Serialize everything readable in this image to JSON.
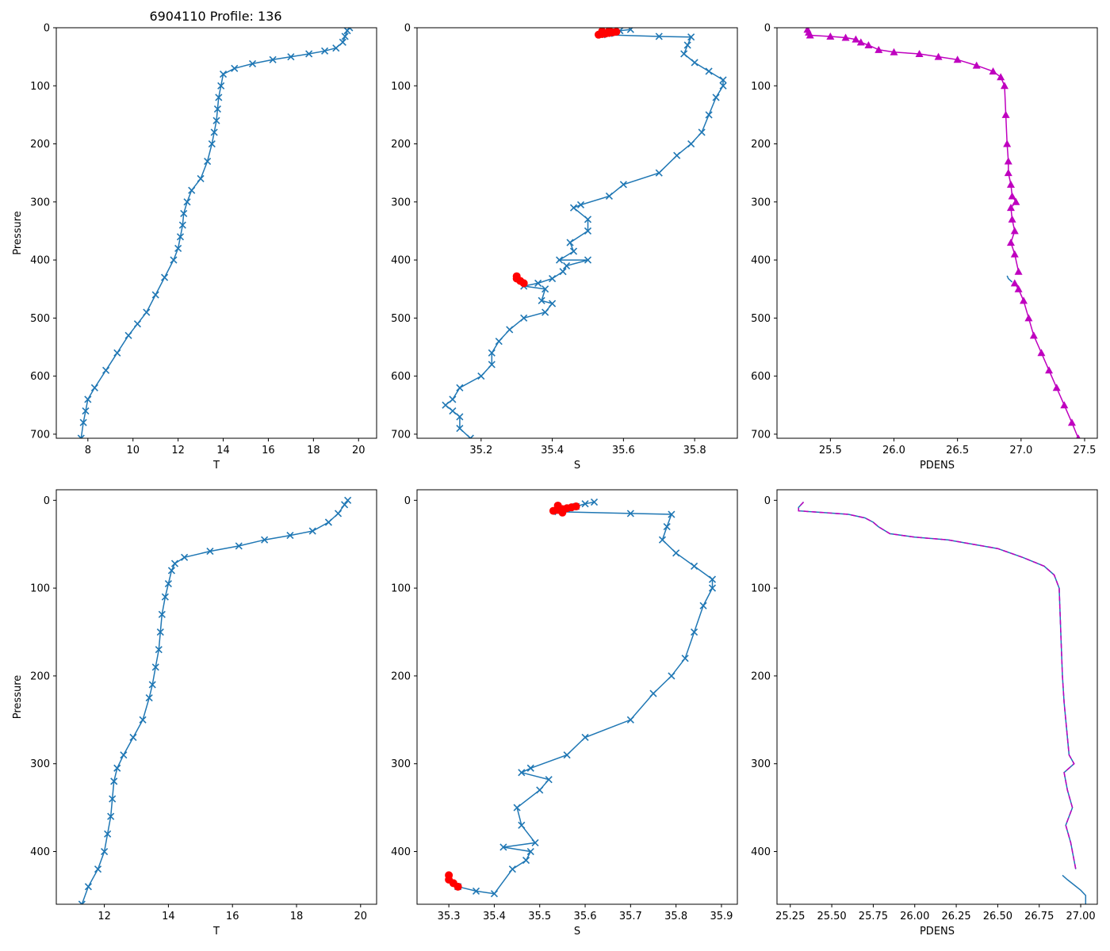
{
  "figure": {
    "title": "6904110 Profile: 136"
  },
  "colors": {
    "blue": "#1f77b4",
    "red": "#ff0000",
    "magenta": "#bf00bf"
  },
  "chart_data": [
    {
      "id": "top-temp",
      "type": "line",
      "title": "6904110 Profile: 136",
      "xlabel": "T",
      "ylabel": "Pressure",
      "xlim": [
        6.6,
        20.8
      ],
      "ylim": [
        707,
        0
      ],
      "y_inverted": true,
      "xticks": [
        8,
        10,
        12,
        14,
        16,
        18,
        20
      ],
      "yticks": [
        0,
        100,
        200,
        300,
        400,
        500,
        600,
        700
      ],
      "series": [
        {
          "name": "T",
          "color": "#1f77b4",
          "marker": "x",
          "x": [
            19.6,
            19.5,
            19.4,
            19.3,
            19.0,
            18.5,
            17.8,
            17.0,
            16.2,
            15.3,
            14.5,
            14.0,
            13.9,
            13.8,
            13.75,
            13.7,
            13.6,
            13.5,
            13.3,
            13.0,
            12.6,
            12.4,
            12.25,
            12.2,
            12.1,
            12.0,
            11.8,
            11.4,
            11.0,
            10.6,
            10.2,
            9.8,
            9.3,
            8.8,
            8.3,
            8.0,
            7.9,
            7.8,
            7.7
          ],
          "y": [
            0,
            5,
            15,
            25,
            35,
            40,
            45,
            50,
            55,
            62,
            70,
            80,
            100,
            120,
            140,
            160,
            180,
            200,
            230,
            260,
            280,
            300,
            320,
            340,
            360,
            380,
            400,
            430,
            460,
            490,
            510,
            530,
            560,
            590,
            620,
            640,
            660,
            680,
            707
          ]
        }
      ]
    },
    {
      "id": "top-salt",
      "type": "line",
      "xlabel": "S",
      "ylabel": "",
      "xlim": [
        35.02,
        35.92
      ],
      "ylim": [
        707,
        0
      ],
      "y_inverted": true,
      "xticks": [
        35.2,
        35.4,
        35.6,
        35.8
      ],
      "xtick_labels": [
        "35.2",
        "35.4",
        "35.6",
        "35.8"
      ],
      "yticks": [
        0,
        100,
        200,
        300,
        400,
        500,
        600,
        700
      ],
      "series": [
        {
          "name": "S",
          "color": "#1f77b4",
          "marker": "x",
          "x": [
            35.62,
            35.59,
            35.57,
            35.56,
            35.54,
            35.7,
            35.79,
            35.78,
            35.77,
            35.8,
            35.84,
            35.88,
            35.88,
            35.86,
            35.84,
            35.82,
            35.79,
            35.75,
            35.7,
            35.6,
            35.56,
            35.48,
            35.46,
            35.5,
            35.5,
            35.45,
            35.46,
            35.42,
            35.5,
            35.44,
            35.43,
            35.4,
            35.36,
            35.32,
            35.38,
            35.37,
            35.4,
            35.38,
            35.32,
            35.28,
            35.25,
            35.23,
            35.23,
            35.2,
            35.14,
            35.12,
            35.1,
            35.12,
            35.14,
            35.14,
            35.17
          ],
          "y": [
            3,
            5,
            8,
            10,
            12,
            15,
            16,
            30,
            45,
            60,
            75,
            90,
            100,
            120,
            150,
            180,
            200,
            220,
            250,
            270,
            290,
            305,
            310,
            330,
            350,
            370,
            385,
            400,
            400,
            410,
            420,
            432,
            440,
            445,
            450,
            470,
            475,
            490,
            500,
            520,
            540,
            560,
            580,
            600,
            620,
            640,
            650,
            660,
            670,
            690,
            707
          ]
        },
        {
          "name": "S qc flagged",
          "color": "#ff0000",
          "marker": "o",
          "x": [
            35.53,
            35.54,
            35.55,
            35.56,
            35.57,
            35.58,
            35.56,
            35.54,
            35.3,
            35.3,
            35.31,
            35.32
          ],
          "y": [
            12,
            11,
            10,
            9,
            8,
            7,
            5,
            6,
            428,
            432,
            436,
            440
          ]
        }
      ]
    },
    {
      "id": "top-pdens",
      "type": "line",
      "xlabel": "PDENS",
      "ylabel": "",
      "xlim": [
        25.08,
        27.6
      ],
      "ylim": [
        707,
        0
      ],
      "y_inverted": true,
      "xticks": [
        25.5,
        26.0,
        26.5,
        27.0,
        27.5
      ],
      "xtick_labels": [
        "25.5",
        "26.0",
        "26.5",
        "27.0",
        "27.5"
      ],
      "yticks": [
        0,
        100,
        200,
        300,
        400,
        500,
        600,
        700
      ],
      "series": [
        {
          "name": "PDENS",
          "color": "#bf00bf",
          "marker": "^",
          "x": [
            25.32,
            25.33,
            25.34,
            25.5,
            25.62,
            25.7,
            25.74,
            25.8,
            25.88,
            26.0,
            26.2,
            26.35,
            26.5,
            26.65,
            26.78,
            26.84,
            26.87,
            26.88,
            26.89,
            26.9,
            26.9,
            26.92,
            26.93,
            26.96,
            26.92,
            26.93,
            26.95,
            26.92,
            26.95,
            26.98
          ],
          "y": [
            3,
            8,
            13,
            15,
            17,
            20,
            25,
            30,
            38,
            42,
            45,
            50,
            55,
            65,
            75,
            85,
            100,
            150,
            200,
            230,
            250,
            270,
            290,
            300,
            310,
            330,
            350,
            370,
            390,
            420
          ]
        },
        {
          "name": "PDENS qc",
          "color": "#bf00bf",
          "marker": "^",
          "x": [
            26.95,
            26.98,
            27.02,
            27.06,
            27.1,
            27.16,
            27.22,
            27.28,
            27.34,
            27.4,
            27.45
          ],
          "y": [
            440,
            450,
            470,
            500,
            530,
            560,
            590,
            620,
            650,
            680,
            707
          ]
        },
        {
          "name": "PDENS line",
          "color": "#1f77b4",
          "marker": "",
          "x": [
            26.89,
            26.9,
            26.93
          ],
          "y": [
            427,
            432,
            438
          ]
        }
      ]
    },
    {
      "id": "bottom-temp",
      "type": "line",
      "xlabel": "T",
      "ylabel": "Pressure",
      "xlim": [
        10.5,
        20.5
      ],
      "ylim": [
        460,
        -12
      ],
      "y_inverted": true,
      "xticks": [
        12,
        14,
        16,
        18,
        20
      ],
      "yticks": [
        0,
        100,
        200,
        300,
        400
      ],
      "series": [
        {
          "name": "T",
          "color": "#1f77b4",
          "marker": "x",
          "x": [
            19.6,
            19.5,
            19.3,
            19.0,
            18.5,
            17.8,
            17.0,
            16.2,
            15.3,
            14.5,
            14.2,
            14.1,
            14.0,
            13.9,
            13.8,
            13.75,
            13.7,
            13.6,
            13.5,
            13.4,
            13.2,
            12.9,
            12.6,
            12.4,
            12.3,
            12.25,
            12.2,
            12.1,
            12.0,
            11.8,
            11.5,
            11.3
          ],
          "y": [
            0,
            5,
            15,
            25,
            35,
            40,
            45,
            52,
            58,
            65,
            72,
            80,
            95,
            110,
            130,
            150,
            170,
            190,
            210,
            225,
            250,
            270,
            290,
            305,
            320,
            340,
            360,
            380,
            400,
            420,
            440,
            460
          ]
        }
      ]
    },
    {
      "id": "bottom-salt",
      "type": "line",
      "xlabel": "S",
      "ylabel": "",
      "xlim": [
        35.23,
        35.935
      ],
      "ylim": [
        460,
        -12
      ],
      "y_inverted": true,
      "xticks": [
        35.3,
        35.4,
        35.5,
        35.6,
        35.7,
        35.8,
        35.9
      ],
      "xtick_labels": [
        "35.3",
        "35.4",
        "35.5",
        "35.6",
        "35.7",
        "35.8",
        "35.9"
      ],
      "yticks": [
        0,
        100,
        200,
        300,
        400
      ],
      "series": [
        {
          "name": "S",
          "color": "#1f77b4",
          "marker": "x",
          "x": [
            35.62,
            35.6,
            35.58,
            35.56,
            35.54,
            35.7,
            35.79,
            35.78,
            35.77,
            35.8,
            35.84,
            35.88,
            35.88,
            35.86,
            35.84,
            35.82,
            35.79,
            35.75,
            35.7,
            35.6,
            35.56,
            35.48,
            35.46,
            35.52,
            35.5,
            35.45,
            35.46,
            35.49,
            35.42,
            35.48,
            35.47,
            35.44,
            35.4,
            35.36,
            35.32
          ],
          "y": [
            2,
            4,
            7,
            10,
            13,
            15,
            16,
            30,
            45,
            60,
            75,
            90,
            100,
            120,
            150,
            180,
            200,
            220,
            250,
            270,
            290,
            305,
            310,
            318,
            330,
            350,
            370,
            390,
            395,
            400,
            410,
            420,
            448,
            445,
            440
          ]
        },
        {
          "name": "S qc flagged",
          "color": "#ff0000",
          "marker": "o",
          "x": [
            35.53,
            35.54,
            35.55,
            35.56,
            35.57,
            35.58,
            35.54,
            35.55,
            35.3,
            35.3,
            35.31,
            35.32
          ],
          "y": [
            12,
            11,
            10,
            9,
            8,
            7,
            6,
            14,
            427,
            432,
            436,
            440
          ]
        }
      ]
    },
    {
      "id": "bottom-pdens",
      "type": "line",
      "xlabel": "PDENS",
      "ylabel": "",
      "xlim": [
        25.17,
        27.1
      ],
      "ylim": [
        460,
        -12
      ],
      "y_inverted": true,
      "xticks": [
        25.25,
        25.5,
        25.75,
        26.0,
        26.25,
        26.5,
        26.75,
        27.0
      ],
      "xtick_labels": [
        "25.25",
        "25.50",
        "25.75",
        "26.00",
        "26.25",
        "26.50",
        "26.75",
        "27.00"
      ],
      "yticks": [
        0,
        100,
        200,
        300,
        400
      ],
      "series": [
        {
          "name": "PDENS",
          "color": "#1f77b4",
          "marker": "",
          "x": [
            25.33,
            25.3,
            25.3,
            25.45,
            25.6,
            25.7,
            25.75,
            25.78,
            25.85,
            26.0,
            26.2,
            26.35,
            26.5,
            26.65,
            26.78,
            26.84,
            26.87,
            26.88,
            26.89,
            26.9,
            26.91,
            26.92,
            26.93,
            26.96,
            26.9,
            26.92,
            26.95,
            26.91,
            26.94,
            26.97
          ],
          "y": [
            2,
            8,
            12,
            14,
            16,
            20,
            25,
            30,
            38,
            42,
            45,
            50,
            55,
            65,
            75,
            85,
            100,
            150,
            200,
            230,
            250,
            270,
            290,
            300,
            310,
            330,
            350,
            370,
            390,
            420
          ]
        },
        {
          "name": "PDENS bottom",
          "color": "#1f77b4",
          "marker": "",
          "x": [
            26.89,
            26.92,
            26.96,
            27.0,
            27.03,
            27.03
          ],
          "y": [
            427,
            432,
            438,
            444,
            450,
            460
          ]
        }
      ]
    }
  ]
}
